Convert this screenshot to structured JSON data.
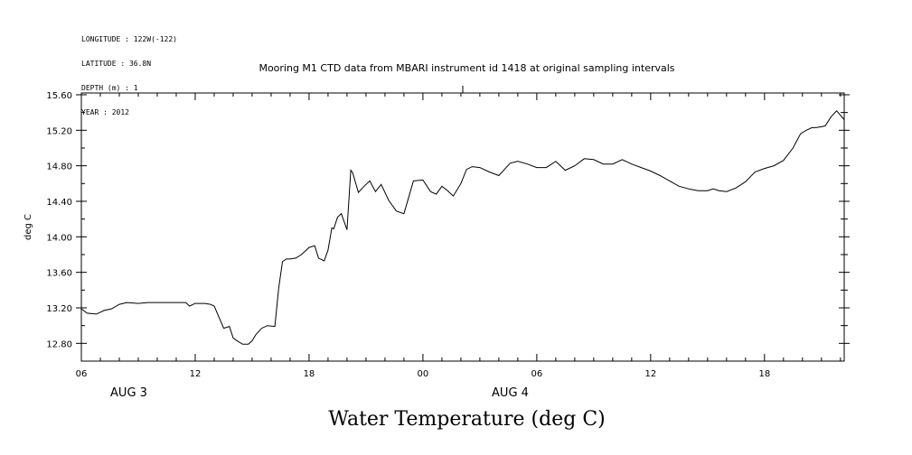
{
  "metadata": {
    "longitude": "LONGITUDE : 122W(-122)",
    "latitude": "LATITUDE : 36.8N",
    "depth": "DEPTH (m) : 1",
    "year": "YEAR : 2012"
  },
  "chart_data": {
    "type": "line",
    "title": "Mooring M1 CTD data from MBARI instrument id 1418 at original sampling intervals",
    "bottom_title": "Water Temperature (deg C)",
    "ylabel": "deg C",
    "ylim": [
      12.6,
      15.62
    ],
    "y_ticks": [
      "12.80",
      "13.20",
      "13.60",
      "14.00",
      "14.40",
      "14.80",
      "15.20",
      "15.60"
    ],
    "y_tick_values": [
      12.8,
      13.2,
      13.6,
      14.0,
      14.4,
      14.8,
      15.2,
      15.6
    ],
    "xlim_hours": [
      6,
      46.2
    ],
    "x_ticks": [
      {
        "hour": 6,
        "label": "06"
      },
      {
        "hour": 12,
        "label": "12"
      },
      {
        "hour": 18,
        "label": "18"
      },
      {
        "hour": 24,
        "label": "00"
      },
      {
        "hour": 30,
        "label": "06"
      },
      {
        "hour": 36,
        "label": "12"
      },
      {
        "hour": 42,
        "label": "18"
      }
    ],
    "date_labels": [
      {
        "hour": 8.5,
        "label": "AUG  3"
      },
      {
        "hour": 28.6,
        "label": "AUG  4"
      }
    ],
    "series": [
      {
        "x": [
          6.0,
          6.3,
          6.8,
          7.2,
          7.6,
          8.0,
          8.4,
          9.0,
          9.5,
          10.0,
          10.5,
          11.0,
          11.5,
          11.7,
          12.0,
          12.5,
          12.8,
          13.0,
          13.3,
          13.5,
          13.8,
          14.0,
          14.2,
          14.5,
          14.8,
          15.0,
          15.2,
          15.5,
          15.8,
          16.2,
          16.4,
          16.6,
          16.8,
          17.0,
          17.3,
          17.6,
          17.8,
          18.0,
          18.3,
          18.5,
          18.8,
          19.0,
          19.2,
          19.3,
          19.5,
          19.7,
          20.0,
          20.2,
          20.3,
          20.6,
          20.9,
          21.2,
          21.5,
          21.8,
          22.2,
          22.6,
          23.0,
          23.5,
          24.0,
          24.4,
          24.7,
          25.0,
          25.3,
          25.6,
          26.0,
          26.3,
          26.6,
          27.0,
          27.5,
          28.0,
          28.3,
          28.6,
          29.0,
          29.5,
          30.0,
          30.5,
          31.0,
          31.5,
          32.0,
          32.5,
          33.0,
          33.5,
          34.0,
          34.5,
          35.0,
          35.5,
          36.0,
          36.5,
          37.0,
          37.5,
          38.0,
          38.5,
          39.0,
          39.3,
          39.6,
          40.0,
          40.5,
          41.0,
          41.5,
          42.0,
          42.5,
          43.0,
          43.5,
          43.9,
          44.2,
          44.5,
          44.7,
          45.0,
          45.2,
          45.5,
          45.8,
          46.2
        ],
        "values": [
          13.19,
          13.14,
          13.13,
          13.17,
          13.19,
          13.24,
          13.26,
          13.25,
          13.26,
          13.26,
          13.26,
          13.26,
          13.26,
          13.22,
          13.25,
          13.25,
          13.24,
          13.22,
          13.07,
          12.97,
          12.99,
          12.86,
          12.83,
          12.79,
          12.79,
          12.83,
          12.9,
          12.97,
          13.0,
          12.99,
          13.42,
          13.72,
          13.75,
          13.75,
          13.76,
          13.8,
          13.84,
          13.88,
          13.9,
          13.76,
          13.73,
          13.85,
          14.1,
          14.09,
          14.22,
          14.26,
          14.08,
          14.75,
          14.72,
          14.5,
          14.57,
          14.63,
          14.51,
          14.59,
          14.41,
          14.29,
          14.26,
          14.63,
          14.64,
          14.51,
          14.48,
          14.57,
          14.52,
          14.46,
          14.6,
          14.76,
          14.79,
          14.78,
          14.73,
          14.69,
          14.76,
          14.83,
          14.85,
          14.82,
          14.78,
          14.78,
          14.85,
          14.75,
          14.8,
          14.88,
          14.87,
          14.82,
          14.82,
          14.87,
          14.82,
          14.78,
          14.74,
          14.69,
          14.63,
          14.57,
          14.54,
          14.52,
          14.52,
          14.54,
          14.52,
          14.51,
          14.55,
          14.62,
          14.73,
          14.77,
          14.8,
          14.86,
          15.0,
          15.16,
          15.2,
          15.23,
          15.23,
          15.24,
          15.25,
          15.35,
          15.42,
          15.32
        ]
      }
    ],
    "grid": false
  }
}
